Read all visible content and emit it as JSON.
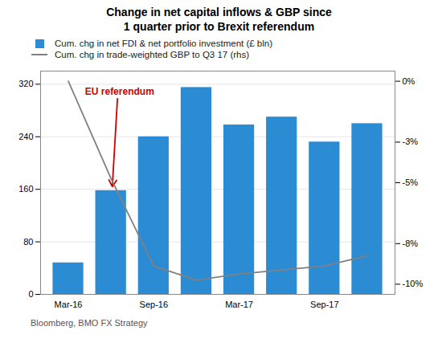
{
  "chart_data": {
    "type": "bar",
    "title": "Change in net capital inflows & GBP since\n1 quarter prior to Brexit referendum",
    "categories": [
      "Mar-16",
      null,
      "Sep-16",
      null,
      "Mar-17",
      null,
      "Sep-17",
      null
    ],
    "series": [
      {
        "name": "Cum. chg in net FDI & net portfolio investment (£ bln)",
        "type": "bar",
        "color": "#2B8CD4",
        "values": [
          48,
          158,
          240,
          315,
          258,
          270,
          232,
          260
        ]
      },
      {
        "name": "Cum. chg in trade-weighted GBP to Q3 17 (rhs)",
        "type": "line",
        "axis": "y2",
        "color": "#808080",
        "values": [
          0.0,
          -4.8,
          -9.1,
          -9.8,
          -9.5,
          -9.3,
          -9.1,
          -8.6
        ]
      }
    ],
    "ylim": [
      0,
      340
    ],
    "yticks": [
      0,
      80,
      160,
      240,
      320
    ],
    "y2lim": [
      -10.5,
      0.5
    ],
    "y2ticks": [
      {
        "value": 0,
        "label": "0%"
      },
      {
        "value": -3,
        "label": "-3%"
      },
      {
        "value": -5,
        "label": "-5%"
      },
      {
        "value": -8,
        "label": "-8%"
      },
      {
        "value": -10,
        "label": "-10%"
      }
    ],
    "grid": true,
    "legend": "top",
    "annotations": [
      {
        "text": "EU referendum",
        "color": "#CC0000",
        "x": 1
      }
    ],
    "caption": "Bloomberg, BMO FX Strategy"
  }
}
